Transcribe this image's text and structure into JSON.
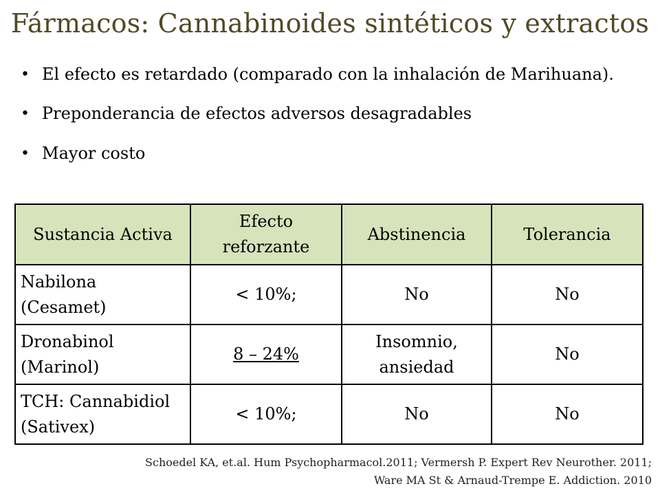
{
  "title": "Fármacos: Cannabinoides sintéticos y extractos",
  "bullets": [
    {
      "mark": "•",
      "text": "El efecto es retardado (comparado con la inhalación de Marihuana)."
    },
    {
      "mark": "•",
      "text": "Preponderancia de efectos adversos desagradables"
    },
    {
      "mark": "•",
      "text": "Mayor costo"
    }
  ],
  "table": {
    "headers": [
      "Sustancia Activa",
      "Efecto reforzante",
      "Abstinencia",
      "Tolerancia"
    ],
    "rows": [
      [
        "Nabilona (Cesamet)",
        "< 10%;",
        "No",
        "No"
      ],
      [
        "Dronabinol (Marinol)",
        "8 – 24%",
        "Insomnio, ansiedad",
        "No"
      ],
      [
        "TCH: Cannabidiol (Sativex)",
        "< 10%;",
        "No",
        "No"
      ]
    ]
  },
  "citation": {
    "line1": "Schoedel KA, et.al. Hum Psychopharmacol.2011; Vermersh P. Expert Rev Neurother. 2011;",
    "line2": "Ware MA St & Arnaud-Trempe E. Addiction. 2010"
  },
  "colors": {
    "title": "#4f4a24",
    "header_fill": "#d7e3bb",
    "border": "#000000"
  }
}
